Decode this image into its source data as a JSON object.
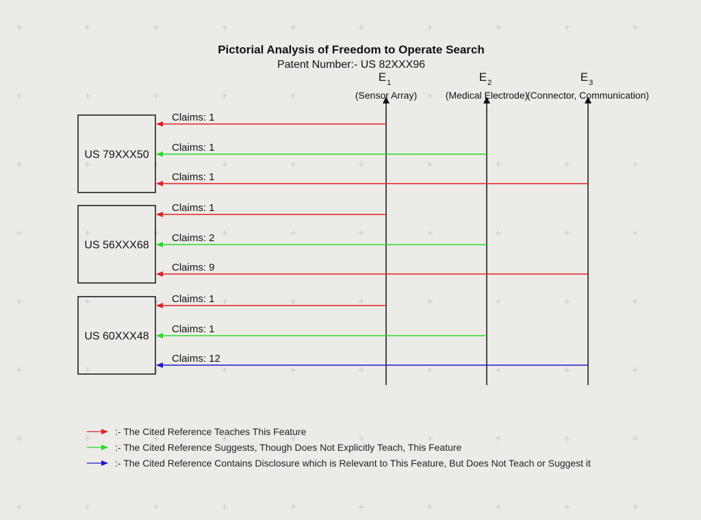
{
  "diagram": {
    "title": "Pictorial Analysis of Freedom to Operate Search",
    "subtitle": "Patent Number:- US 82XXX96",
    "colors": {
      "red": "#e02020",
      "green": "#22dd22",
      "blue": "#1a1ad0",
      "box_stroke": "#111111",
      "axis": "#111111"
    },
    "features": [
      {
        "letter": "E",
        "index": "1",
        "desc": "(Sensor Array)"
      },
      {
        "letter": "E",
        "index": "2",
        "desc": "(Medical Electrode)"
      },
      {
        "letter": "E",
        "index": "3",
        "desc": "(Connector, Communication)"
      }
    ],
    "references": [
      {
        "label": "US 79XXX50",
        "links": [
          {
            "feature": 0,
            "claims": "Claims: 1",
            "type": "red"
          },
          {
            "feature": 1,
            "claims": "Claims: 1",
            "type": "green"
          },
          {
            "feature": 2,
            "claims": "Claims: 1",
            "type": "red"
          }
        ]
      },
      {
        "label": "US 56XXX68",
        "links": [
          {
            "feature": 0,
            "claims": "Claims: 1",
            "type": "red"
          },
          {
            "feature": 1,
            "claims": "Claims: 2",
            "type": "green"
          },
          {
            "feature": 2,
            "claims": "Claims: 9",
            "type": "red"
          }
        ]
      },
      {
        "label": "US 60XXX48",
        "links": [
          {
            "feature": 0,
            "claims": "Claims: 1",
            "type": "red"
          },
          {
            "feature": 1,
            "claims": "Claims: 1",
            "type": "green"
          },
          {
            "feature": 2,
            "claims": "Claims: 12",
            "type": "blue"
          }
        ]
      }
    ],
    "legend": [
      {
        "type": "red",
        "text": ":- The Cited Reference Teaches This Feature"
      },
      {
        "type": "green",
        "text": ":- The Cited Reference Suggests, Though Does Not Explicitly Teach, This Feature"
      },
      {
        "type": "blue",
        "text": ":- The Cited Reference Contains Disclosure which is Relevant to This Feature, But Does Not Teach or Suggest it"
      }
    ]
  }
}
